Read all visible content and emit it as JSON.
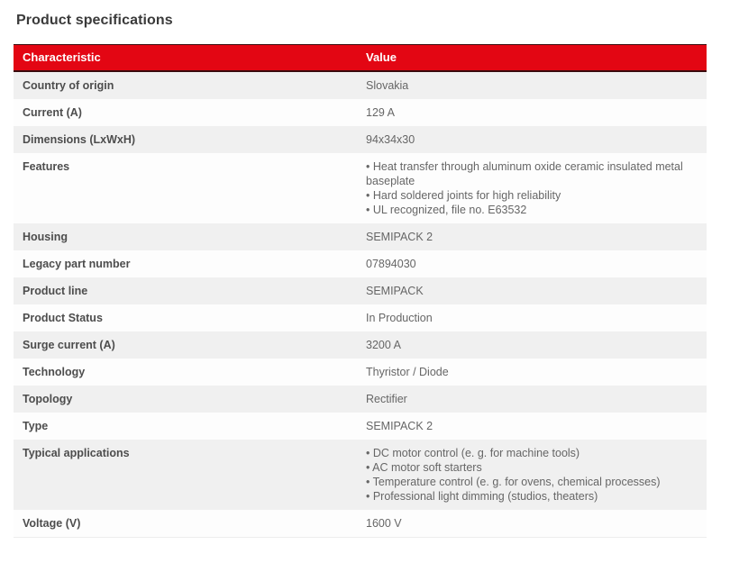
{
  "page": {
    "title": "Product specifications"
  },
  "colors": {
    "header_background": "#e30613",
    "header_border": "#3a0b0d",
    "header_text": "#ffffff",
    "row_alt_background": "#f0f0f0",
    "row_background": "#fdfdfd",
    "label_text": "#4d4d4d",
    "value_text": "#666666",
    "title_text": "#3a3a3a"
  },
  "table": {
    "columns": [
      "Characteristic",
      "Value"
    ],
    "rows": [
      {
        "characteristic": "Country of origin",
        "value": "Slovakia"
      },
      {
        "characteristic": "Current (A)",
        "value": "129 A"
      },
      {
        "characteristic": "Dimensions (LxWxH)",
        "value": "94x34x30"
      },
      {
        "characteristic": "Features",
        "value": [
          "• Heat transfer through aluminum oxide ceramic insulated metal baseplate",
          "• Hard soldered joints for high reliability",
          "• UL recognized, file no. E63532"
        ]
      },
      {
        "characteristic": "Housing",
        "value": "SEMIPACK 2"
      },
      {
        "characteristic": "Legacy part number",
        "value": "07894030"
      },
      {
        "characteristic": "Product line",
        "value": "SEMIPACK"
      },
      {
        "characteristic": "Product Status",
        "value": "In Production"
      },
      {
        "characteristic": "Surge current (A)",
        "value": "3200 A"
      },
      {
        "characteristic": "Technology",
        "value": "Thyristor / Diode"
      },
      {
        "characteristic": "Topology",
        "value": "Rectifier"
      },
      {
        "characteristic": "Type",
        "value": "SEMIPACK 2"
      },
      {
        "characteristic": "Typical applications",
        "value": [
          "• DC motor control (e. g. for machine tools)",
          "• AC motor soft starters",
          "• Temperature control (e. g. for ovens, chemical processes)",
          "• Professional light dimming (studios, theaters)"
        ]
      },
      {
        "characteristic": "Voltage (V)",
        "value": "1600 V"
      }
    ]
  }
}
